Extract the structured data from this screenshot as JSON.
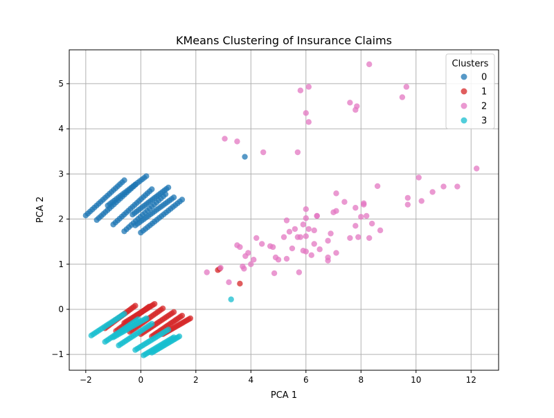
{
  "chart_data": {
    "type": "scatter",
    "title": "KMeans Clustering of Insurance Claims",
    "xlabel": "PCA 1",
    "ylabel": "PCA 2",
    "xlim": [
      -2.6,
      13.0
    ],
    "ylim": [
      -1.35,
      5.75
    ],
    "xticks": [
      -2,
      0,
      2,
      4,
      6,
      8,
      10,
      12
    ],
    "yticks": [
      -1,
      0,
      1,
      2,
      3,
      4,
      5
    ],
    "grid": true,
    "legend": {
      "title": "Clusters",
      "position": "top-right"
    },
    "series": [
      {
        "name": "0",
        "color": "#1f77b4",
        "stripes": [
          {
            "from": [
              -2.0,
              2.08
            ],
            "to": [
              -0.6,
              2.86
            ]
          },
          {
            "from": [
              -1.6,
              1.98
            ],
            "to": [
              -0.2,
              2.76
            ]
          },
          {
            "from": [
              -1.0,
              1.88
            ],
            "to": [
              0.4,
              2.66
            ]
          },
          {
            "from": [
              -0.6,
              1.73
            ],
            "to": [
              0.9,
              2.55
            ]
          },
          {
            "from": [
              -0.2,
              1.86
            ],
            "to": [
              1.2,
              2.48
            ]
          },
          {
            "from": [
              0.0,
              1.7
            ],
            "to": [
              1.5,
              2.43
            ]
          },
          {
            "from": [
              -1.2,
              2.3
            ],
            "to": [
              0.2,
              2.95
            ]
          },
          {
            "from": [
              -0.3,
              2.1
            ],
            "to": [
              1.0,
              2.7
            ]
          }
        ],
        "points": [
          [
            3.78,
            3.38
          ]
        ]
      },
      {
        "name": "1",
        "color": "#d62728",
        "stripes": [
          {
            "from": [
              -1.3,
              -0.42
            ],
            "to": [
              -0.2,
              0.08
            ]
          },
          {
            "from": [
              -0.9,
              -0.48
            ],
            "to": [
              0.3,
              0.06
            ]
          },
          {
            "from": [
              -0.4,
              -0.5
            ],
            "to": [
              0.8,
              0.02
            ]
          },
          {
            "from": [
              0.0,
              -0.55
            ],
            "to": [
              1.2,
              -0.06
            ]
          },
          {
            "from": [
              0.4,
              -0.6
            ],
            "to": [
              1.5,
              -0.14
            ]
          },
          {
            "from": [
              0.8,
              -0.55
            ],
            "to": [
              1.8,
              -0.2
            ]
          },
          {
            "from": [
              -0.6,
              -0.3
            ],
            "to": [
              0.5,
              0.12
            ]
          }
        ],
        "points": [
          [
            2.8,
            0.87
          ],
          [
            2.87,
            0.9
          ],
          [
            3.6,
            0.57
          ]
        ]
      },
      {
        "name": "2",
        "color": "#e377c2",
        "points": [
          [
            2.4,
            0.82
          ],
          [
            2.9,
            0.92
          ],
          [
            3.2,
            0.6
          ],
          [
            3.5,
            1.42
          ],
          [
            3.6,
            1.38
          ],
          [
            3.7,
            0.95
          ],
          [
            3.75,
            0.9
          ],
          [
            3.8,
            1.18
          ],
          [
            3.9,
            1.25
          ],
          [
            4.0,
            1.0
          ],
          [
            4.1,
            1.1
          ],
          [
            4.2,
            1.58
          ],
          [
            4.4,
            1.45
          ],
          [
            4.7,
            1.4
          ],
          [
            4.8,
            1.38
          ],
          [
            4.85,
            0.8
          ],
          [
            4.9,
            1.15
          ],
          [
            5.0,
            1.1
          ],
          [
            5.2,
            1.6
          ],
          [
            5.3,
            1.12
          ],
          [
            5.3,
            1.97
          ],
          [
            5.4,
            1.72
          ],
          [
            5.5,
            1.35
          ],
          [
            5.6,
            1.78
          ],
          [
            5.7,
            1.6
          ],
          [
            5.75,
            0.82
          ],
          [
            5.8,
            1.6
          ],
          [
            5.9,
            1.3
          ],
          [
            5.9,
            1.88
          ],
          [
            6.0,
            1.28
          ],
          [
            6.0,
            1.62
          ],
          [
            6.0,
            2.02
          ],
          [
            6.0,
            2.22
          ],
          [
            6.1,
            1.78
          ],
          [
            6.2,
            1.2
          ],
          [
            6.3,
            1.75
          ],
          [
            6.3,
            1.45
          ],
          [
            6.4,
            2.07
          ],
          [
            6.4,
            2.07
          ],
          [
            6.5,
            1.33
          ],
          [
            6.8,
            1.52
          ],
          [
            6.8,
            1.08
          ],
          [
            6.8,
            1.15
          ],
          [
            6.9,
            1.68
          ],
          [
            7.1,
            1.25
          ],
          [
            7.0,
            2.15
          ],
          [
            7.1,
            2.18
          ],
          [
            7.1,
            2.57
          ],
          [
            7.4,
            2.38
          ],
          [
            7.6,
            1.58
          ],
          [
            7.8,
            1.85
          ],
          [
            7.8,
            2.25
          ],
          [
            7.9,
            1.6
          ],
          [
            8.0,
            2.05
          ],
          [
            8.1,
            2.32
          ],
          [
            8.1,
            2.35
          ],
          [
            8.2,
            2.07
          ],
          [
            8.3,
            1.58
          ],
          [
            8.4,
            1.9
          ],
          [
            8.6,
            2.73
          ],
          [
            8.7,
            1.75
          ],
          [
            9.7,
            2.32
          ],
          [
            9.7,
            2.47
          ],
          [
            10.1,
            2.92
          ],
          [
            10.2,
            2.4
          ],
          [
            10.6,
            2.6
          ],
          [
            11.0,
            2.72
          ],
          [
            11.5,
            2.72
          ],
          [
            12.2,
            3.12
          ],
          [
            3.05,
            3.78
          ],
          [
            3.5,
            3.72
          ],
          [
            4.45,
            3.48
          ],
          [
            5.7,
            3.48
          ],
          [
            5.8,
            4.85
          ],
          [
            6.0,
            4.35
          ],
          [
            6.1,
            4.15
          ],
          [
            6.1,
            4.93
          ],
          [
            7.6,
            4.58
          ],
          [
            7.8,
            4.42
          ],
          [
            7.85,
            4.5
          ],
          [
            8.3,
            5.43
          ],
          [
            9.5,
            4.7
          ],
          [
            9.65,
            4.93
          ]
        ]
      },
      {
        "name": "3",
        "color": "#17becf",
        "stripes": [
          {
            "from": [
              -1.8,
              -0.58
            ],
            "to": [
              -0.6,
              -0.1
            ]
          },
          {
            "from": [
              -1.3,
              -0.72
            ],
            "to": [
              -0.1,
              -0.22
            ]
          },
          {
            "from": [
              -0.8,
              -0.8
            ],
            "to": [
              0.4,
              -0.32
            ]
          },
          {
            "from": [
              -0.2,
              -0.9
            ],
            "to": [
              1.0,
              -0.45
            ]
          },
          {
            "from": [
              0.1,
              -1.02
            ],
            "to": [
              1.2,
              -0.62
            ]
          },
          {
            "from": [
              0.4,
              -0.96
            ],
            "to": [
              1.4,
              -0.6
            ]
          },
          {
            "from": [
              -1.0,
              -0.62
            ],
            "to": [
              0.2,
              -0.2
            ]
          }
        ],
        "points": [
          [
            3.28,
            0.22
          ]
        ]
      }
    ]
  }
}
